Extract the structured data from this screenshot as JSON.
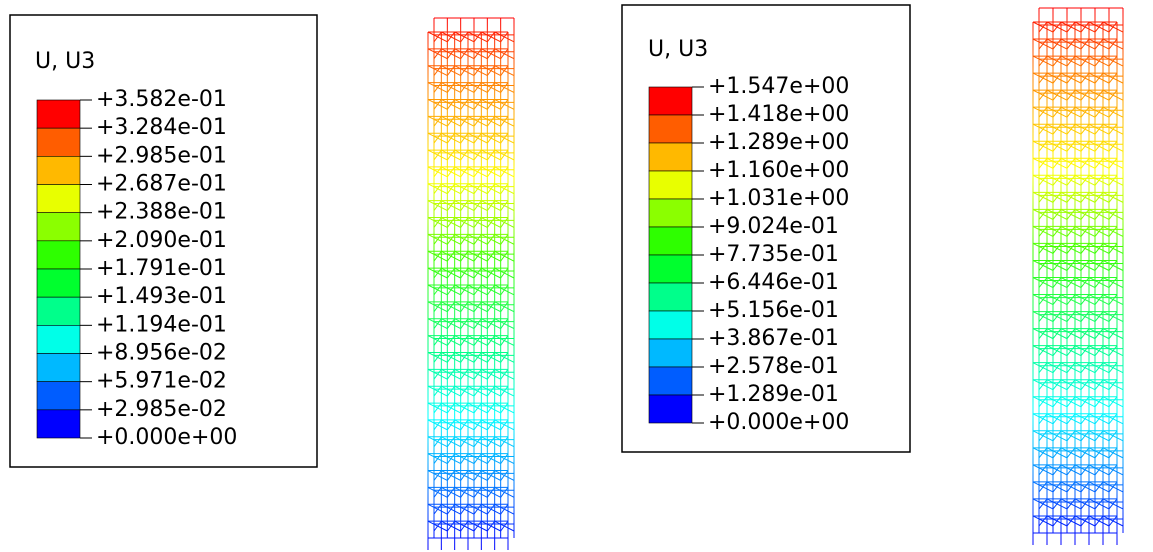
{
  "legends": [
    {
      "title": "U, U3",
      "labels": [
        "+3.582e-01",
        "+3.284e-01",
        "+2.985e-01",
        "+2.687e-01",
        "+2.388e-01",
        "+2.090e-01",
        "+1.791e-01",
        "+1.493e-01",
        "+1.194e-01",
        "+8.956e-02",
        "+5.971e-02",
        "+2.985e-02",
        "+0.000e+00"
      ],
      "colors": [
        "#ff0000",
        "#ff5d00",
        "#ffb900",
        "#e8ff00",
        "#8bff00",
        "#2eff00",
        "#00ff2e",
        "#00ff8b",
        "#00ffe8",
        "#00b9ff",
        "#005dff",
        "#0000ff"
      ]
    },
    {
      "title": "U, U3",
      "labels": [
        "+1.547e+00",
        "+1.418e+00",
        "+1.289e+00",
        "+1.160e+00",
        "+1.031e+00",
        "+9.024e-01",
        "+7.735e-01",
        "+6.446e-01",
        "+5.156e-01",
        "+3.867e-01",
        "+2.578e-01",
        "+1.289e-01",
        "+0.000e+00"
      ],
      "colors": [
        "#ff0000",
        "#ff5d00",
        "#ffb900",
        "#e8ff00",
        "#8bff00",
        "#2eff00",
        "#00ff2e",
        "#00ff8b",
        "#00ffe8",
        "#00b9ff",
        "#005dff",
        "#0000ff"
      ]
    }
  ]
}
